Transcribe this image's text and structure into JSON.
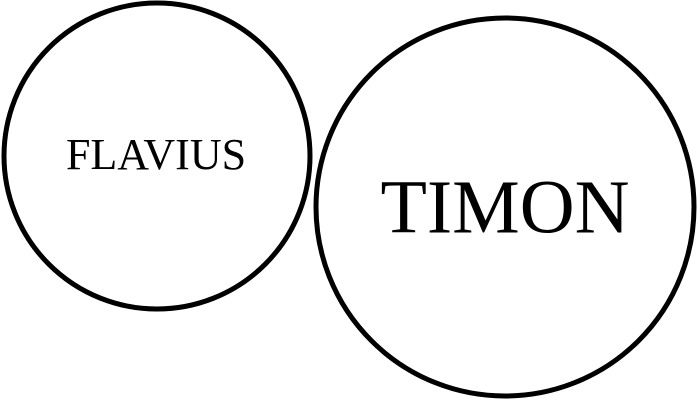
{
  "diagram": {
    "nodes": [
      {
        "label": "FLAVIUS"
      },
      {
        "label": "TIMON"
      }
    ],
    "colors": {
      "stroke": "#000000",
      "background": "#ffffff",
      "text": "#000000"
    }
  }
}
